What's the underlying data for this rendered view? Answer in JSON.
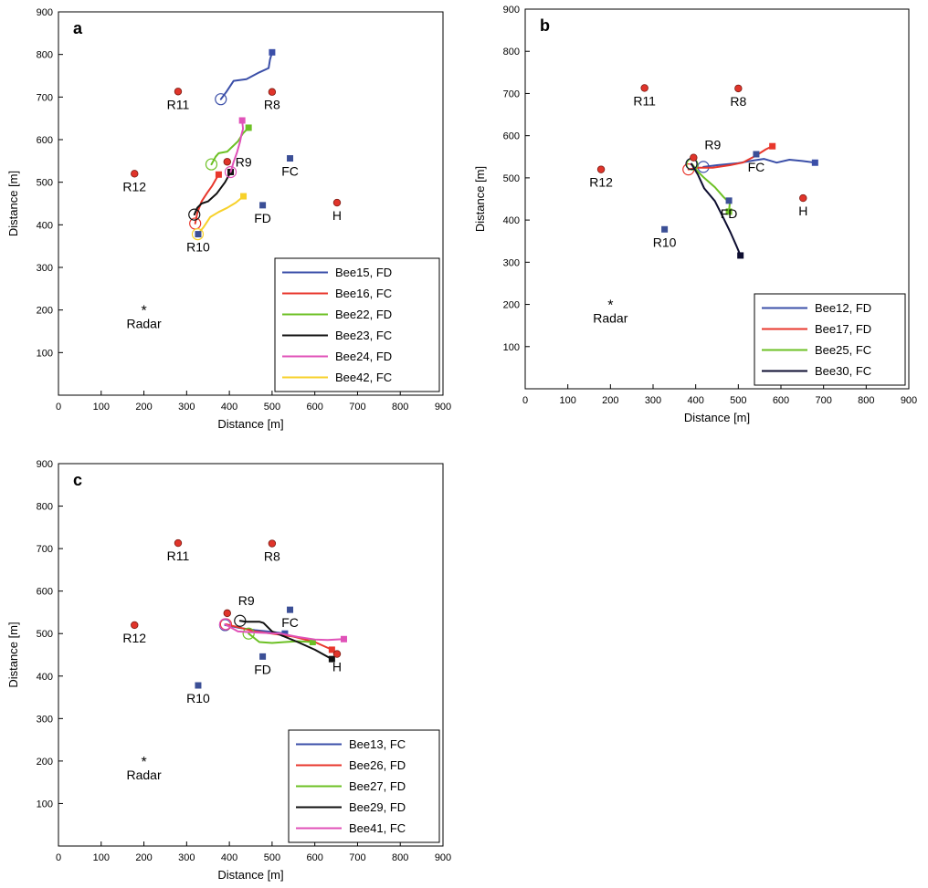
{
  "figure": {
    "x_axis_label": "Distance [m]",
    "y_axis_label": "Distance [m]"
  },
  "colors": {
    "landmark_red": "#e0342a",
    "landmark_blue": "#3b4f96",
    "Bee15": "#3b4fa8",
    "Bee16": "#e8372c",
    "Bee22": "#6cc024",
    "Bee23": "#111111",
    "Bee24": "#e052b8",
    "Bee42": "#f7d12a",
    "Bee12": "#3b4fa8",
    "Bee17": "#e8372c",
    "Bee25": "#6cc024",
    "Bee30": "#0d0d30",
    "Bee13": "#3b4fa8",
    "Bee26": "#e8372c",
    "Bee27": "#6cc024",
    "Bee29": "#111111",
    "Bee41": "#e052b8"
  },
  "chart_data": [
    {
      "panel": "a",
      "type": "line",
      "xlim": [
        0,
        900
      ],
      "ylim": [
        0,
        900
      ],
      "xticks": [
        0,
        100,
        200,
        300,
        400,
        500,
        600,
        700,
        800,
        900
      ],
      "yticks": [
        100,
        200,
        300,
        400,
        500,
        600,
        700,
        800,
        900
      ],
      "xlabel": "Distance [m]",
      "ylabel": "Distance [m]",
      "legend_position": "bottom-right",
      "landmarks": [
        {
          "label": "R11",
          "x": 280,
          "y": 713,
          "kind": "circle",
          "label_pos": "below"
        },
        {
          "label": "R8",
          "x": 500,
          "y": 712,
          "kind": "circle",
          "label_pos": "below"
        },
        {
          "label": "R12",
          "x": 178,
          "y": 520,
          "kind": "circle",
          "label_pos": "below"
        },
        {
          "label": "R9",
          "x": 395,
          "y": 548,
          "kind": "circle",
          "label_pos": "right"
        },
        {
          "label": "FC",
          "x": 542,
          "y": 556,
          "kind": "square",
          "label_pos": "below"
        },
        {
          "label": "FD",
          "x": 478,
          "y": 446,
          "kind": "square",
          "label_pos": "below"
        },
        {
          "label": "H",
          "x": 652,
          "y": 452,
          "kind": "circle",
          "label_pos": "below"
        },
        {
          "label": "R10",
          "x": 327,
          "y": 378,
          "kind": "square",
          "label_pos": "below"
        },
        {
          "label": "Radar",
          "x": 200,
          "y": 200,
          "kind": "star",
          "label_pos": "below"
        }
      ],
      "series": [
        {
          "name": "Bee15, FD",
          "color_key": "Bee15",
          "x": [
            380,
            393,
            410,
            440,
            470,
            492,
            495,
            500
          ],
          "y": [
            695,
            712,
            738,
            742,
            758,
            768,
            788,
            805
          ]
        },
        {
          "name": "Bee16, FC",
          "color_key": "Bee16",
          "x": [
            320,
            325,
            335,
            348,
            360,
            368,
            375
          ],
          "y": [
            403,
            428,
            455,
            475,
            492,
            506,
            518
          ]
        },
        {
          "name": "Bee22, FD",
          "color_key": "Bee22",
          "x": [
            358,
            368,
            375,
            395,
            420,
            432,
            445
          ],
          "y": [
            542,
            560,
            568,
            572,
            596,
            615,
            628
          ]
        },
        {
          "name": "Bee23, FC",
          "color_key": "Bee23",
          "x": [
            318,
            325,
            335,
            350,
            370,
            390,
            403
          ],
          "y": [
            424,
            440,
            450,
            455,
            473,
            500,
            524
          ]
        },
        {
          "name": "Bee24, FD",
          "color_key": "Bee24",
          "x": [
            403,
            410,
            418,
            425,
            428,
            432,
            430
          ],
          "y": [
            524,
            548,
            570,
            595,
            610,
            625,
            645
          ]
        },
        {
          "name": "Bee42, FC",
          "color_key": "Bee42",
          "x": [
            326,
            340,
            355,
            375,
            395,
            415,
            433
          ],
          "y": [
            378,
            395,
            418,
            430,
            440,
            452,
            467
          ]
        }
      ]
    },
    {
      "panel": "b",
      "type": "line",
      "xlim": [
        0,
        900
      ],
      "ylim": [
        0,
        900
      ],
      "xticks": [
        0,
        100,
        200,
        300,
        400,
        500,
        600,
        700,
        800,
        900
      ],
      "yticks": [
        100,
        200,
        300,
        400,
        500,
        600,
        700,
        800,
        900
      ],
      "xlabel": "Distance [m]",
      "ylabel": "Distance [m]",
      "legend_position": "bottom-right",
      "landmarks": [
        {
          "label": "R11",
          "x": 280,
          "y": 713,
          "kind": "circle",
          "label_pos": "below"
        },
        {
          "label": "R8",
          "x": 500,
          "y": 712,
          "kind": "circle",
          "label_pos": "below"
        },
        {
          "label": "R12",
          "x": 178,
          "y": 520,
          "kind": "circle",
          "label_pos": "below"
        },
        {
          "label": "R9",
          "x": 395,
          "y": 548,
          "kind": "circle",
          "label_pos": "above"
        },
        {
          "label": "FC",
          "x": 542,
          "y": 556,
          "kind": "square",
          "label_pos": "below"
        },
        {
          "label": "FD",
          "x": 478,
          "y": 446,
          "kind": "square",
          "label_pos": "below"
        },
        {
          "label": "H",
          "x": 652,
          "y": 452,
          "kind": "circle",
          "label_pos": "below"
        },
        {
          "label": "R10",
          "x": 327,
          "y": 378,
          "kind": "square",
          "label_pos": "below"
        },
        {
          "label": "Radar",
          "x": 200,
          "y": 200,
          "kind": "star",
          "label_pos": "below"
        }
      ],
      "series": [
        {
          "name": "Bee12, FD",
          "color_key": "Bee12",
          "x": [
            418,
            450,
            500,
            540,
            560,
            590,
            620,
            650,
            680
          ],
          "y": [
            526,
            530,
            535,
            542,
            545,
            536,
            543,
            540,
            536
          ]
        },
        {
          "name": "Bee17, FD",
          "color_key": "Bee17",
          "x": [
            383,
            405,
            440,
            480,
            510,
            540,
            565,
            580
          ],
          "y": [
            520,
            524,
            524,
            530,
            536,
            552,
            568,
            575
          ]
        },
        {
          "name": "Bee25, FC",
          "color_key": "Bee25",
          "x": [
            392,
            405,
            420,
            445,
            465,
            480,
            478
          ],
          "y": [
            532,
            515,
            500,
            478,
            455,
            440,
            420
          ]
        },
        {
          "name": "Bee30, FC",
          "color_key": "Bee30",
          "x": [
            390,
            405,
            420,
            445,
            465,
            482,
            495,
            505
          ],
          "y": [
            533,
            508,
            475,
            445,
            405,
            370,
            340,
            316
          ]
        }
      ]
    },
    {
      "panel": "c",
      "type": "line",
      "xlim": [
        0,
        900
      ],
      "ylim": [
        0,
        900
      ],
      "xticks": [
        0,
        100,
        200,
        300,
        400,
        500,
        600,
        700,
        800,
        900
      ],
      "yticks": [
        100,
        200,
        300,
        400,
        500,
        600,
        700,
        800,
        900
      ],
      "xlabel": "Distance [m]",
      "ylabel": "Distance [m]",
      "legend_position": "bottom-right",
      "landmarks": [
        {
          "label": "R11",
          "x": 280,
          "y": 713,
          "kind": "circle",
          "label_pos": "below"
        },
        {
          "label": "R8",
          "x": 500,
          "y": 712,
          "kind": "circle",
          "label_pos": "below"
        },
        {
          "label": "R12",
          "x": 178,
          "y": 520,
          "kind": "circle",
          "label_pos": "below"
        },
        {
          "label": "R9",
          "x": 395,
          "y": 548,
          "kind": "circle",
          "label_pos": "above"
        },
        {
          "label": "FC",
          "x": 542,
          "y": 556,
          "kind": "square",
          "label_pos": "below"
        },
        {
          "label": "FD",
          "x": 478,
          "y": 446,
          "kind": "square",
          "label_pos": "below"
        },
        {
          "label": "H",
          "x": 652,
          "y": 452,
          "kind": "circle",
          "label_pos": "below"
        },
        {
          "label": "R10",
          "x": 327,
          "y": 378,
          "kind": "square",
          "label_pos": "below"
        },
        {
          "label": "Radar",
          "x": 200,
          "y": 200,
          "kind": "star",
          "label_pos": "below"
        }
      ],
      "series": [
        {
          "name": "Bee13, FC",
          "color_key": "Bee13",
          "x": [
            390,
            420,
            460,
            500,
            530
          ],
          "y": [
            520,
            514,
            508,
            504,
            500
          ]
        },
        {
          "name": "Bee26, FD",
          "color_key": "Bee26",
          "x": [
            392,
            420,
            460,
            500,
            550,
            600,
            640
          ],
          "y": [
            522,
            515,
            505,
            500,
            493,
            480,
            462
          ]
        },
        {
          "name": "Bee27, FD",
          "color_key": "Bee27",
          "x": [
            445,
            470,
            500,
            530,
            560,
            595
          ],
          "y": [
            500,
            480,
            478,
            480,
            482,
            480
          ]
        },
        {
          "name": "Bee29, FD",
          "color_key": "Bee29",
          "x": [
            425,
            440,
            470,
            480,
            500,
            560,
            600,
            640
          ],
          "y": [
            530,
            528,
            528,
            525,
            505,
            480,
            462,
            440
          ]
        },
        {
          "name": "Bee41, FC",
          "color_key": "Bee41",
          "x": [
            390,
            420,
            470,
            520,
            560,
            600,
            630,
            668
          ],
          "y": [
            522,
            505,
            502,
            500,
            492,
            486,
            485,
            487
          ]
        }
      ]
    }
  ]
}
